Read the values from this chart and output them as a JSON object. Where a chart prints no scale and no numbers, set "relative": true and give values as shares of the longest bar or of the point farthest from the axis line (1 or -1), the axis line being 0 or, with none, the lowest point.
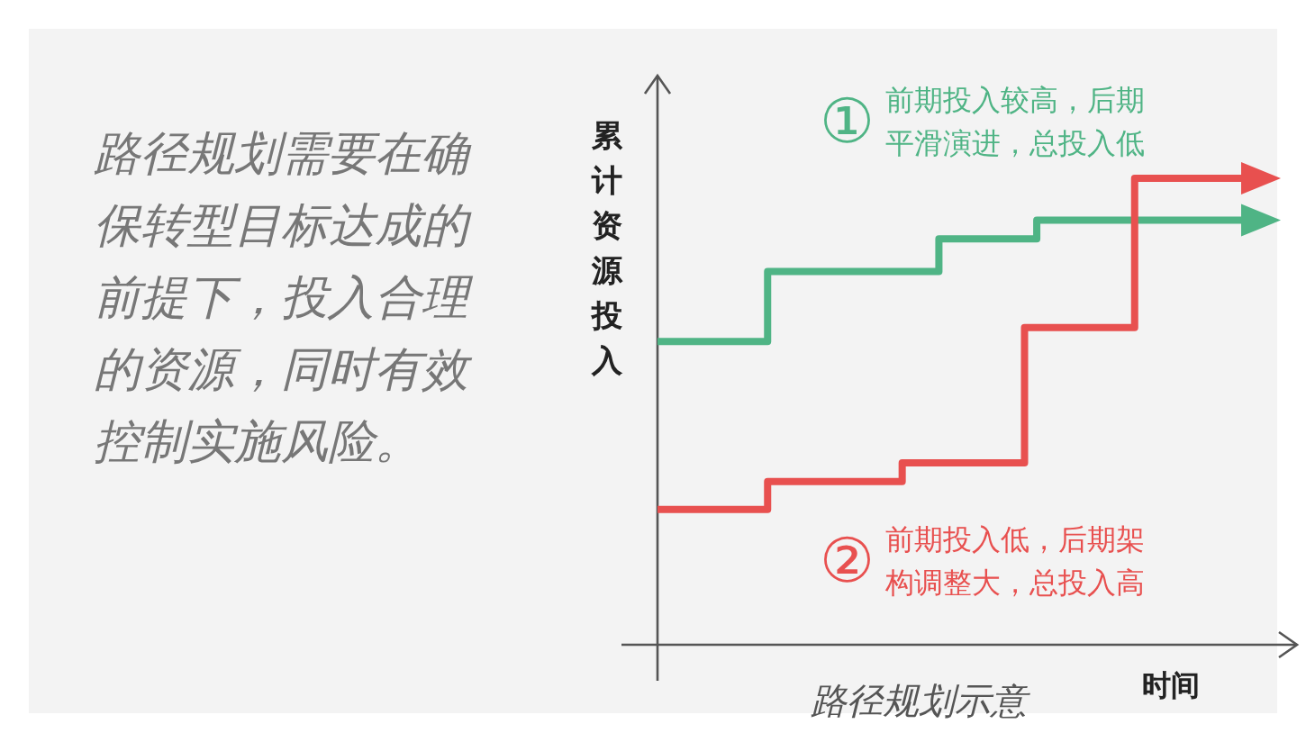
{
  "chart_data": {
    "type": "step",
    "relative": true,
    "xlabel": "时间",
    "ylabel": "累计资源投入",
    "annotations": [
      "路径规划需要在确保转型目标达成的前提下，投入合理的资源，同时有效控制实施风险。",
      "路径规划示意"
    ],
    "categories": [
      null,
      null,
      null,
      null,
      null,
      null,
      null,
      null,
      null,
      null,
      null,
      null,
      null,
      null,
      null,
      null,
      null,
      null,
      null,
      null,
      null,
      null,
      null,
      null,
      null,
      null,
      null,
      null,
      null,
      null,
      null,
      null,
      null,
      null,
      null,
      null,
      null,
      null,
      null,
      null,
      null,
      null,
      null,
      null,
      null,
      null,
      null,
      null,
      null
    ],
    "series": [
      {
        "name": "①前期投入较高，后期平滑演进，总投入低",
        "color": "#4fb485",
        "values": [
          0.65,
          0.65,
          0.65,
          0.65,
          0.65,
          0.65,
          0.65,
          0.65,
          0.65,
          0.8,
          0.8,
          0.8,
          0.8,
          0.8,
          0.8,
          0.8,
          0.8,
          0.8,
          0.8,
          0.8,
          0.8,
          0.8,
          0.8,
          0.87,
          0.87,
          0.87,
          0.87,
          0.87,
          0.87,
          0.87,
          0.87,
          0.91,
          0.91,
          0.91,
          0.91,
          0.91,
          0.91,
          0.91,
          0.91,
          0.91,
          0.91,
          0.91,
          0.91,
          0.91,
          0.91,
          0.91,
          0.91,
          0.91,
          0.91
        ]
      },
      {
        "name": "②前期投入低，后期架构调整大，总投入高",
        "color": "#e8504f",
        "values": [
          0.29,
          0.29,
          0.29,
          0.29,
          0.29,
          0.29,
          0.29,
          0.29,
          0.29,
          0.35,
          0.35,
          0.35,
          0.35,
          0.35,
          0.35,
          0.35,
          0.35,
          0.35,
          0.35,
          0.35,
          0.39,
          0.39,
          0.39,
          0.39,
          0.39,
          0.39,
          0.39,
          0.39,
          0.39,
          0.39,
          0.68,
          0.68,
          0.68,
          0.68,
          0.68,
          0.68,
          0.68,
          0.68,
          0.68,
          1,
          1,
          1,
          1,
          1,
          1,
          1,
          1,
          1,
          1
        ]
      }
    ]
  }
}
